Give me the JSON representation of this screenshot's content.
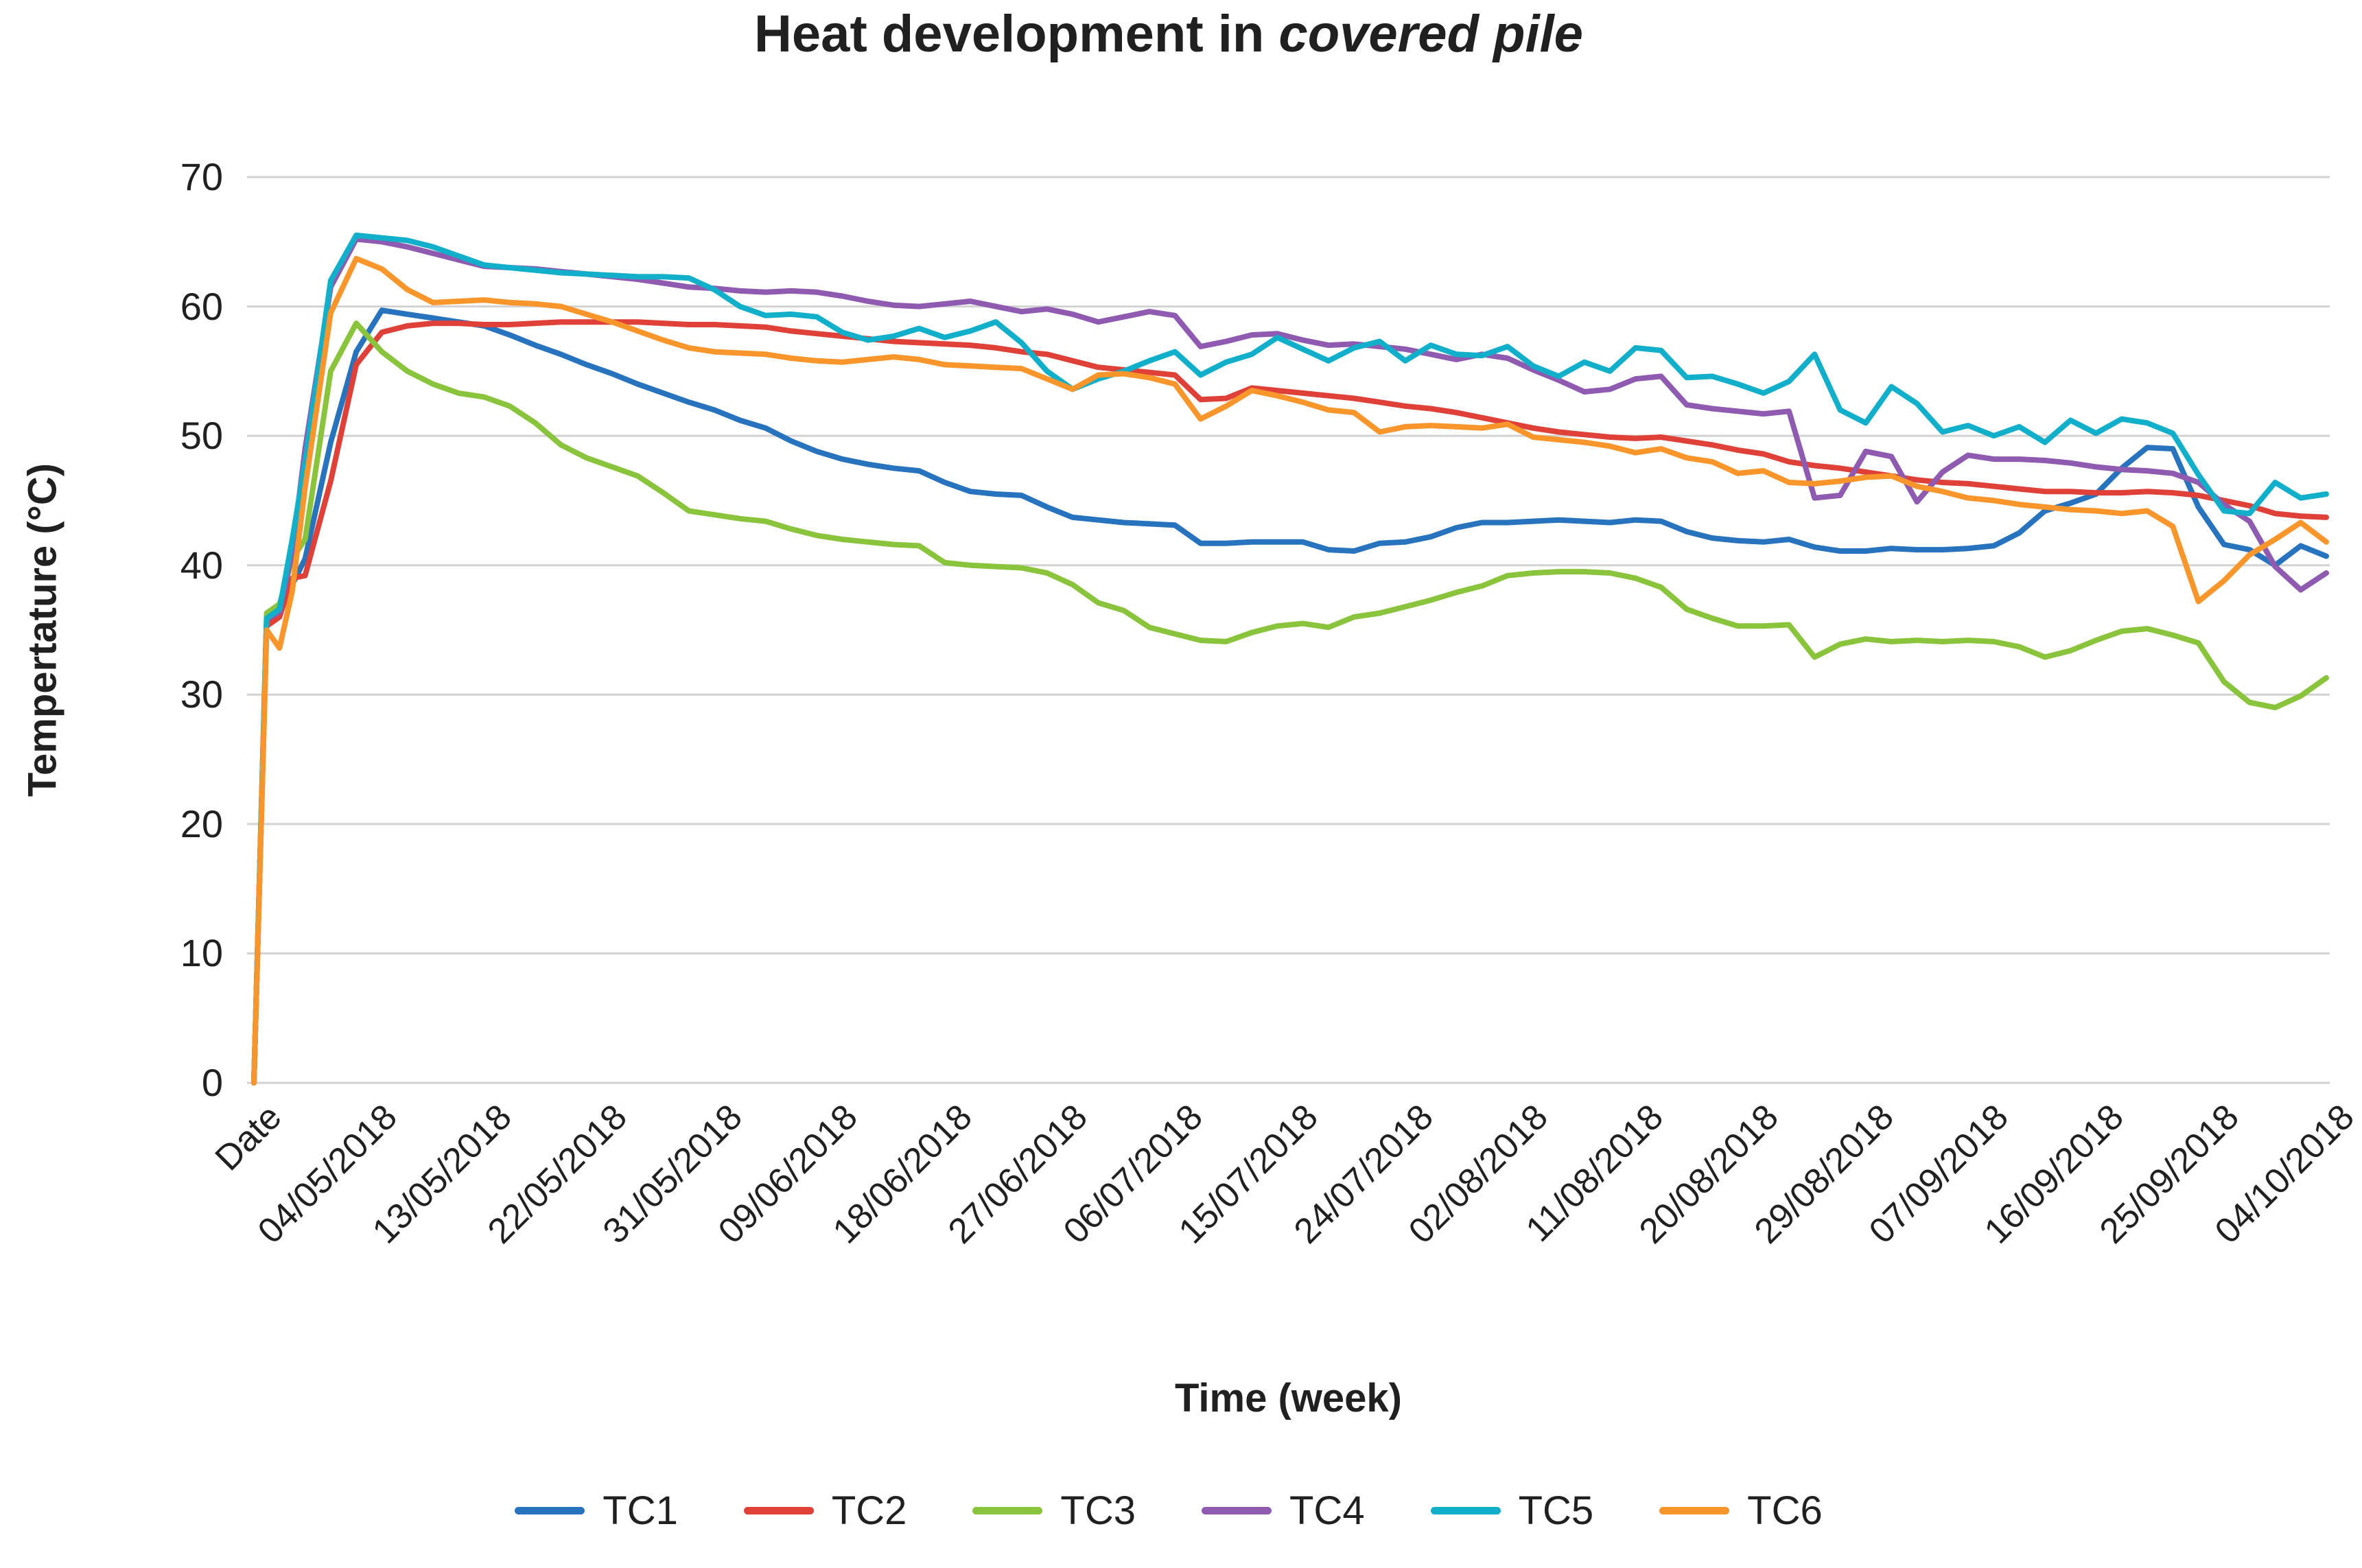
{
  "title": {
    "prefix": "Heat development in ",
    "emphasis": "covered pile"
  },
  "chart_data": {
    "type": "line",
    "title": "Heat development in covered pile",
    "xlabel": "Time (week)",
    "ylabel": "Tempertature (°C)",
    "ylim": [
      0,
      70
    ],
    "ytick_interval": 10,
    "y_tick_labels": [
      "70",
      "60",
      "50",
      "40",
      "30",
      "20",
      "10",
      "0"
    ],
    "grid": "horizontal",
    "legend_position": "bottom",
    "x_tick_labels": [
      "Date",
      "04/05/2018",
      "13/05/2018",
      "22/05/2018",
      "31/05/2018",
      "09/06/2018",
      "18/06/2018",
      "27/06/2018",
      "06/07/2018",
      "15/07/2018",
      "24/07/2018",
      "02/08/2018",
      "11/08/2018",
      "20/08/2018",
      "29/08/2018",
      "07/09/2018",
      "16/09/2018",
      "25/09/2018",
      "04/10/2018"
    ],
    "x_tick_day_interval": 9,
    "x_days_total": 162,
    "x_days": [
      0,
      1,
      2,
      3,
      4,
      6,
      8,
      10,
      12,
      14,
      16,
      18,
      20,
      22,
      24,
      26,
      28,
      30,
      32,
      34,
      36,
      38,
      40,
      42,
      44,
      46,
      48,
      50,
      52,
      54,
      56,
      58,
      60,
      62,
      64,
      66,
      68,
      70,
      72,
      74,
      76,
      78,
      80,
      82,
      84,
      86,
      88,
      90,
      92,
      94,
      96,
      98,
      100,
      102,
      104,
      106,
      108,
      110,
      112,
      114,
      116,
      118,
      120,
      122,
      124,
      126,
      128,
      130,
      132,
      134,
      136,
      138,
      140,
      142,
      144,
      146,
      148,
      150,
      152,
      154,
      156,
      158,
      160,
      162
    ],
    "series": [
      {
        "name": "TC1",
        "color": "#2873BE",
        "values": [
          0,
          36,
          36.8,
          38.5,
          40.5,
          49.5,
          56.5,
          59.7,
          59.4,
          59.1,
          58.8,
          58.5,
          57.8,
          57,
          56.3,
          55.5,
          54.8,
          54,
          53.3,
          52.6,
          52,
          51.2,
          50.6,
          49.6,
          48.8,
          48.2,
          47.8,
          47.5,
          47.3,
          46.4,
          45.7,
          45.5,
          45.4,
          44.5,
          43.7,
          43.5,
          43.3,
          43.2,
          43.1,
          41.7,
          41.7,
          41.8,
          41.8,
          41.8,
          41.2,
          41.1,
          41.7,
          41.8,
          42.2,
          42.9,
          43.3,
          43.3,
          43.4,
          43.5,
          43.4,
          43.3,
          43.5,
          43.4,
          42.6,
          42.1,
          41.9,
          41.8,
          42,
          41.4,
          41.1,
          41.1,
          41.3,
          41.2,
          41.2,
          41.3,
          41.5,
          42.5,
          44.2,
          44.8,
          45.5,
          47.5,
          49.1,
          49,
          44.5,
          41.6,
          41.2,
          40,
          41.5,
          40.7
        ]
      },
      {
        "name": "TC2",
        "color": "#DF4037",
        "values": [
          0,
          35.3,
          36,
          39,
          39.2,
          46.5,
          55.5,
          58,
          58.5,
          58.7,
          58.7,
          58.6,
          58.6,
          58.7,
          58.8,
          58.8,
          58.8,
          58.8,
          58.7,
          58.6,
          58.6,
          58.5,
          58.4,
          58.1,
          57.9,
          57.7,
          57.5,
          57.3,
          57.2,
          57.1,
          57,
          56.8,
          56.5,
          56.3,
          55.8,
          55.3,
          55.1,
          54.9,
          54.7,
          52.8,
          52.9,
          53.7,
          53.5,
          53.3,
          53.1,
          52.9,
          52.6,
          52.3,
          52.1,
          51.8,
          51.4,
          51,
          50.6,
          50.3,
          50.1,
          49.9,
          49.8,
          49.9,
          49.6,
          49.3,
          48.9,
          48.6,
          48,
          47.7,
          47.5,
          47.2,
          46.9,
          46.6,
          46.4,
          46.3,
          46.1,
          45.9,
          45.7,
          45.7,
          45.6,
          45.6,
          45.7,
          45.6,
          45.4,
          45,
          44.6,
          44,
          43.8,
          43.7
        ]
      },
      {
        "name": "TC3",
        "color": "#8AC43C",
        "values": [
          0,
          36.3,
          37,
          40.5,
          42,
          55,
          58.7,
          56.5,
          55,
          54,
          53.3,
          53,
          52.3,
          51,
          49.3,
          48.3,
          47.6,
          46.9,
          45.6,
          44.2,
          43.9,
          43.6,
          43.4,
          42.8,
          42.3,
          42,
          41.8,
          41.6,
          41.5,
          40.2,
          40,
          39.9,
          39.8,
          39.4,
          38.5,
          37.1,
          36.5,
          35.2,
          34.7,
          34.2,
          34.1,
          34.8,
          35.3,
          35.5,
          35.2,
          36,
          36.3,
          36.8,
          37.3,
          37.9,
          38.4,
          39.2,
          39.4,
          39.5,
          39.5,
          39.4,
          39,
          38.3,
          36.6,
          35.9,
          35.3,
          35.3,
          35.4,
          32.9,
          33.9,
          34.3,
          34.1,
          34.2,
          34.1,
          34.2,
          34.1,
          33.7,
          32.9,
          33.4,
          34.2,
          34.9,
          35.1,
          34.6,
          34,
          31,
          29.4,
          29,
          29.9,
          31.3
        ]
      },
      {
        "name": "TC4",
        "color": "#8F5BB0",
        "values": [
          0,
          35.8,
          36.4,
          41,
          49,
          61.5,
          65.2,
          65,
          64.6,
          64.1,
          63.6,
          63.1,
          63,
          62.9,
          62.7,
          62.5,
          62.3,
          62.1,
          61.8,
          61.5,
          61.4,
          61.2,
          61.1,
          61.2,
          61.1,
          60.8,
          60.4,
          60.1,
          60,
          60.2,
          60.4,
          60,
          59.6,
          59.8,
          59.4,
          58.8,
          59.2,
          59.6,
          59.3,
          56.9,
          57.3,
          57.8,
          57.9,
          57.4,
          57,
          57.1,
          56.9,
          56.7,
          56.3,
          55.9,
          56.3,
          56,
          55.1,
          54.3,
          53.4,
          53.6,
          54.4,
          54.6,
          52.4,
          52.1,
          51.9,
          51.7,
          51.9,
          45.2,
          45.4,
          48.8,
          48.4,
          44.9,
          47.2,
          48.5,
          48.2,
          48.2,
          48.1,
          47.9,
          47.6,
          47.4,
          47.3,
          47.1,
          46.4,
          44.7,
          43.4,
          39.9,
          38.1,
          39.4
        ]
      },
      {
        "name": "TC5",
        "color": "#12AFCB",
        "values": [
          0,
          35.9,
          36.6,
          42,
          48,
          62,
          65.5,
          65.3,
          65.1,
          64.6,
          63.9,
          63.2,
          63,
          62.8,
          62.6,
          62.5,
          62.4,
          62.3,
          62.3,
          62.2,
          61.3,
          60,
          59.3,
          59.4,
          59.2,
          58,
          57.4,
          57.7,
          58.3,
          57.6,
          58.1,
          58.8,
          57.2,
          55,
          53.6,
          54.4,
          55,
          55.8,
          56.5,
          54.7,
          55.7,
          56.3,
          57.6,
          56.7,
          55.8,
          56.8,
          57.3,
          55.8,
          57,
          56.3,
          56.2,
          56.9,
          55.4,
          54.6,
          55.7,
          55,
          56.8,
          56.6,
          54.5,
          54.6,
          54,
          53.3,
          54.2,
          56.3,
          52,
          51,
          53.8,
          52.5,
          50.3,
          50.8,
          50,
          50.7,
          49.5,
          51.2,
          50.2,
          51.3,
          51,
          50.2,
          47,
          44.2,
          44,
          46.4,
          45.2,
          45.5
        ]
      },
      {
        "name": "TC6",
        "color": "#F8962B",
        "values": [
          0,
          35,
          33.6,
          38,
          46,
          59.5,
          63.7,
          62.9,
          61.3,
          60.3,
          60.4,
          60.5,
          60.3,
          60.2,
          60,
          59.4,
          58.8,
          58.1,
          57.4,
          56.8,
          56.5,
          56.4,
          56.3,
          56,
          55.8,
          55.7,
          55.9,
          56.1,
          55.9,
          55.5,
          55.4,
          55.3,
          55.2,
          54.4,
          53.6,
          54.7,
          54.8,
          54.5,
          54,
          51.3,
          52.3,
          53.5,
          53.1,
          52.6,
          52,
          51.8,
          50.3,
          50.7,
          50.8,
          50.7,
          50.6,
          50.9,
          49.9,
          49.7,
          49.5,
          49.2,
          48.7,
          49,
          48.3,
          48,
          47.1,
          47.3,
          46.4,
          46.3,
          46.5,
          46.8,
          46.9,
          46.1,
          45.7,
          45.2,
          45,
          44.7,
          44.5,
          44.3,
          44.2,
          44,
          44.2,
          43,
          37.2,
          38.8,
          40.8,
          42,
          43.3,
          41.8
        ]
      }
    ]
  }
}
